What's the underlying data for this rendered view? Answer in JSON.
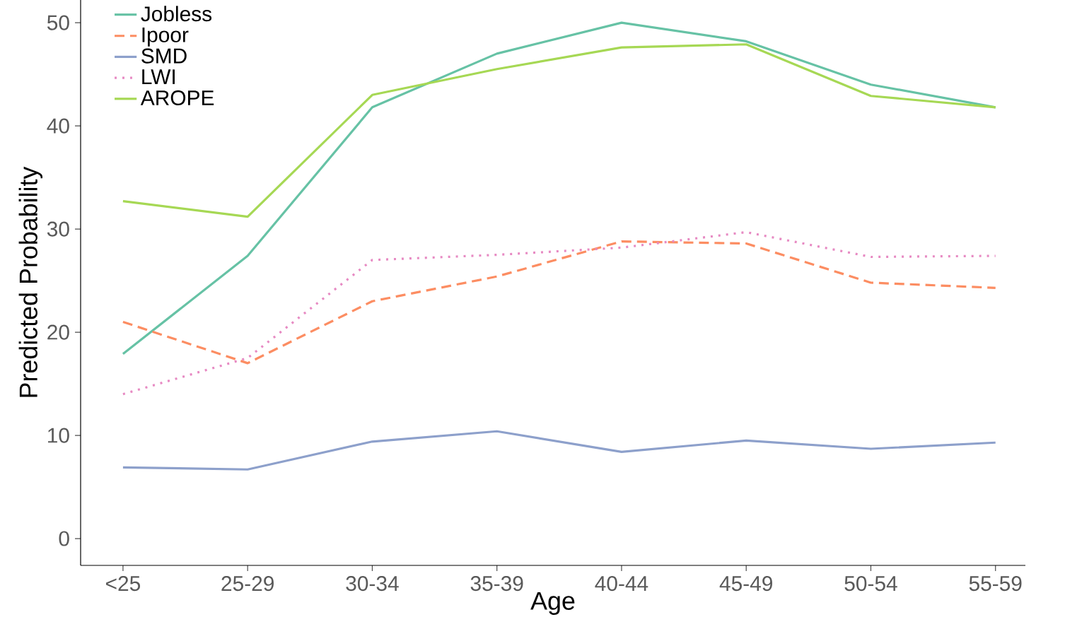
{
  "chart_data": {
    "type": "line",
    "xlabel": "Age",
    "ylabel": "Predicted Probability",
    "categories": [
      "<25",
      "25-29",
      "30-34",
      "35-39",
      "40-44",
      "45-49",
      "50-54",
      "55-59"
    ],
    "ylim": [
      -2.6,
      52.2
    ],
    "yticks": [
      0,
      10,
      20,
      30,
      40,
      50
    ],
    "grid": false,
    "legend": "top left",
    "marker": "none",
    "series": [
      {
        "name": "Jobless",
        "color": "#66c2a5",
        "line_style": "solid",
        "values": [
          17.9,
          27.4,
          41.8,
          47.0,
          50.0,
          48.2,
          44.0,
          41.8
        ]
      },
      {
        "name": "Ipoor",
        "color": "#fc8d62",
        "line_style": "dashed",
        "values": [
          21.0,
          17.0,
          23.0,
          25.4,
          28.8,
          28.6,
          24.8,
          24.3
        ]
      },
      {
        "name": "SMD",
        "color": "#8da0cb",
        "line_style": "solid",
        "values": [
          6.9,
          6.7,
          9.4,
          10.4,
          8.4,
          9.5,
          8.7,
          9.3
        ]
      },
      {
        "name": "LWI",
        "color": "#e78ac3",
        "line_style": "dotted",
        "values": [
          14.0,
          17.5,
          27.0,
          27.5,
          28.2,
          29.7,
          27.3,
          27.4
        ]
      },
      {
        "name": "AROPE",
        "color": "#a6d854",
        "line_style": "solid",
        "values": [
          32.7,
          31.2,
          43.0,
          45.5,
          47.6,
          47.9,
          42.9,
          41.8
        ]
      }
    ]
  }
}
